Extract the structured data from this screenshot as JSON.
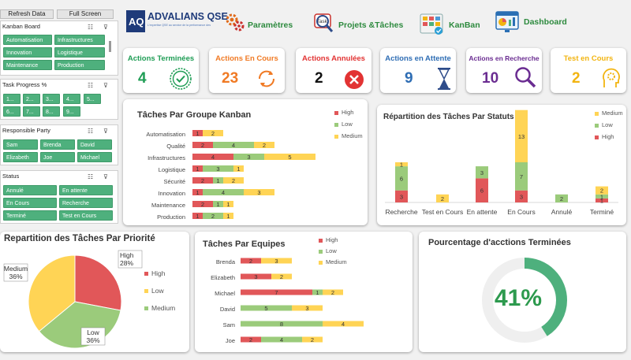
{
  "toolbar": {
    "refresh_label": "Refresh Data",
    "fullscreen_label": "Full Screen"
  },
  "slicers": {
    "kanban": {
      "title": "Kanban Board",
      "items": [
        "Automatisation",
        "Infrastructures",
        "Innovation",
        "Logistique",
        "Maintenance",
        "Production"
      ]
    },
    "progress": {
      "title": "Task Progress %",
      "items": [
        "1...",
        "2...",
        "3...",
        "4...",
        "5...",
        "6...",
        "7...",
        "8...",
        "9..."
      ]
    },
    "responsible": {
      "title": "Responsible Party",
      "items": [
        "Sam",
        "Brenda",
        "David",
        "Elizabeth",
        "Joe",
        "Michael"
      ]
    },
    "status": {
      "title": "Status",
      "items": [
        "Annulé",
        "En attente",
        "En Cours",
        "Recherche",
        "Terminé",
        "Test en Cours"
      ]
    }
  },
  "logo": {
    "name": "ADVALIANS QSE",
    "tagline": "L'expertise QSE au service de la performance des entreprises"
  },
  "nav": {
    "parametres": "Paramètres",
    "projets": "Projets &Tâches",
    "kanban": "KanBan",
    "dashboard": "Dashboard",
    "task_icon_text": "Task"
  },
  "kpis": [
    {
      "label": "Actions Terminées",
      "value": "4",
      "color": "#1f9d55"
    },
    {
      "label": "Actions En Cours",
      "value": "23",
      "color": "#f07a24"
    },
    {
      "label": "Actions Annulées",
      "value": "2",
      "color": "#e23333"
    },
    {
      "label": "Actions en Attente",
      "value": "9",
      "color": "#2e6db4"
    },
    {
      "label": "Actions en Recherche",
      "value": "10",
      "color": "#6a2c91"
    },
    {
      "label": "Test en Cours",
      "value": "2",
      "color": "#f2b410"
    }
  ],
  "colors": {
    "high": "#e15759",
    "low": "#9bcb7b",
    "medium": "#ffd455",
    "green": "#4eb07d"
  },
  "charts": {
    "kanban_group": {
      "title": "Tâches Par Groupe Kanban",
      "legend": [
        "High",
        "Low",
        "Medium"
      ],
      "chart_data": {
        "type": "bar",
        "orientation": "horizontal-stacked",
        "categories": [
          "Automatisation",
          "Qualité",
          "Infrastructures",
          "Logistique",
          "Sécurité",
          "Innovation",
          "Maintenance",
          "Production"
        ],
        "series": [
          {
            "name": "High",
            "values": [
              1,
              2,
              4,
              1,
              2,
              1,
              2,
              1
            ]
          },
          {
            "name": "Low",
            "values": [
              0,
              4,
              3,
              3,
              1,
              4,
              1,
              2
            ]
          },
          {
            "name": "Medium",
            "values": [
              2,
              2,
              5,
              1,
              2,
              3,
              1,
              1
            ]
          }
        ]
      }
    },
    "status_dist": {
      "title": "Répartition des Tâches Par Statuts",
      "legend": [
        "Medium",
        "Low",
        "High"
      ],
      "chart_data": {
        "type": "bar",
        "orientation": "vertical-stacked",
        "categories": [
          "Recherche",
          "Test en Cours",
          "En attente",
          "En Cours",
          "Annulé",
          "Terminé"
        ],
        "series": [
          {
            "name": "High",
            "values": [
              3,
              0,
              6,
              3,
              0,
              1
            ]
          },
          {
            "name": "Low",
            "values": [
              6,
              0,
              3,
              7,
              2,
              1
            ]
          },
          {
            "name": "Medium",
            "values": [
              1,
              2,
              0,
              13,
              0,
              2
            ]
          }
        ]
      }
    },
    "priority": {
      "title": "Repartition des Tâches Par Priorité",
      "legend": [
        "High",
        "Low",
        "Medium"
      ],
      "chart_data": {
        "type": "pie",
        "slices": [
          {
            "name": "High",
            "value": 28,
            "label": "High\n28%"
          },
          {
            "name": "Low",
            "value": 36,
            "label": "Low\n36%"
          },
          {
            "name": "Medium",
            "value": 36,
            "label": "Medium\n36%"
          }
        ]
      }
    },
    "teams": {
      "title": "Tâches Par Equipes",
      "legend": [
        "High",
        "Low",
        "Medium"
      ],
      "chart_data": {
        "type": "bar",
        "orientation": "horizontal-stacked",
        "categories": [
          "Brenda",
          "Elizabeth",
          "Michael",
          "David",
          "Sam",
          "Joe"
        ],
        "series": [
          {
            "name": "High",
            "values": [
              2,
              3,
              7,
              0,
              0,
              2
            ]
          },
          {
            "name": "Low",
            "values": [
              0,
              0,
              1,
              5,
              8,
              4
            ]
          },
          {
            "name": "Medium",
            "values": [
              3,
              2,
              2,
              3,
              4,
              2
            ]
          }
        ]
      }
    },
    "completion": {
      "title": "Pourcentage d'acctions Terminées",
      "value_label": "41%",
      "chart_data": {
        "type": "pie",
        "value": 41
      }
    }
  }
}
